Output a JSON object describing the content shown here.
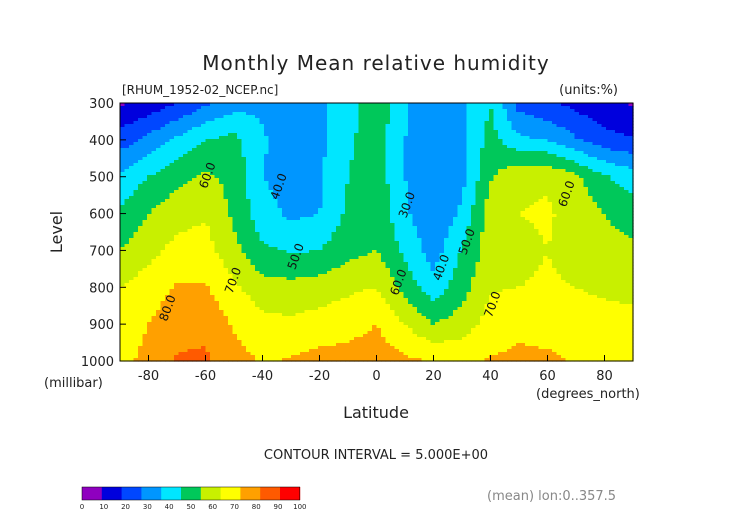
{
  "chart_data": {
    "type": "contour",
    "title": "Monthly Mean relative humidity",
    "subtitle_left": "[RHUM_1952-02_NCEP.nc]",
    "subtitle_right": "(units:%)",
    "xlabel": "Latitude",
    "xunit": "(degrees_north)",
    "ylabel": "Level",
    "yunit": "(millibar)",
    "xlim": [
      -90,
      90
    ],
    "ylim": [
      1000,
      300
    ],
    "xticks": [
      -80,
      -60,
      -40,
      -20,
      0,
      20,
      40,
      60,
      80
    ],
    "yticks": [
      300,
      400,
      500,
      600,
      700,
      800,
      900,
      1000
    ],
    "contour_interval_text": "CONTOUR INTERVAL = 5.000E+00",
    "footer_text": "(mean) lon:0..357.5",
    "contour_labels": [
      {
        "text": "60.0",
        "lat": -58,
        "lev": 500
      },
      {
        "text": "40.0",
        "lat": -33,
        "lev": 530
      },
      {
        "text": "50.0",
        "lat": -27,
        "lev": 720
      },
      {
        "text": "70.0",
        "lat": -49,
        "lev": 785
      },
      {
        "text": "80.0",
        "lat": -72,
        "lev": 860
      },
      {
        "text": "30.0",
        "lat": 12,
        "lev": 580
      },
      {
        "text": "40.0",
        "lat": 24,
        "lev": 750
      },
      {
        "text": "50.0",
        "lat": 33,
        "lev": 680
      },
      {
        "text": "60.0",
        "lat": 9,
        "lev": 790
      },
      {
        "text": "70.0",
        "lat": 42,
        "lev": 850
      },
      {
        "text": "60.0",
        "lat": 68,
        "lev": 550
      }
    ],
    "colorbar": {
      "ticks": [
        "0",
        "10",
        "20",
        "30",
        "40",
        "50",
        "60",
        "70",
        "80",
        "90",
        "100"
      ],
      "colors": [
        "#8f00bf",
        "#0000dd",
        "#0047ff",
        "#0096ff",
        "#00e6ff",
        "#00c85a",
        "#c8f000",
        "#ffff00",
        "#ffa000",
        "#ff5a00",
        "#ff0000"
      ]
    },
    "levels": [
      300,
      400,
      500,
      600,
      700,
      800,
      900,
      1000
    ],
    "latitudes": [
      -90,
      -80,
      -70,
      -60,
      -50,
      -40,
      -30,
      -20,
      -10,
      0,
      10,
      20,
      30,
      40,
      50,
      60,
      70,
      80,
      90
    ],
    "values": [
      [
        9,
        13,
        20,
        28,
        36,
        38,
        36,
        38,
        46,
        56,
        42,
        30,
        37,
        50,
        26,
        21,
        17,
        12,
        9
      ],
      [
        25,
        33,
        42,
        50,
        53,
        41,
        36,
        38,
        48,
        56,
        40,
        30,
        37,
        54,
        42,
        40,
        31,
        24,
        21
      ],
      [
        42,
        50,
        57,
        62,
        57,
        40,
        36,
        38,
        50,
        56,
        40,
        30,
        37,
        59,
        68,
        69,
        62,
        51,
        45
      ],
      [
        52,
        60,
        66,
        69,
        58,
        44,
        38,
        40,
        52,
        57,
        42,
        31,
        42,
        66,
        70,
        71,
        67,
        60,
        55
      ],
      [
        60,
        67,
        73,
        74,
        63,
        52,
        49,
        50,
        57,
        60,
        48,
        35,
        51,
        65,
        68,
        70,
        67,
        64,
        62
      ],
      [
        70,
        75,
        81,
        81,
        72,
        64,
        63,
        65,
        68,
        70,
        56,
        44,
        56,
        69,
        70,
        71,
        70,
        68,
        68
      ],
      [
        76,
        80,
        86,
        87,
        79,
        73,
        72,
        74,
        76,
        80,
        70,
        60,
        65,
        74,
        78,
        76,
        74,
        74,
        72
      ],
      [
        78,
        82,
        91,
        92,
        84,
        79,
        81,
        84,
        84,
        86,
        82,
        80,
        78,
        81,
        82,
        82,
        79,
        76,
        76
      ]
    ]
  }
}
